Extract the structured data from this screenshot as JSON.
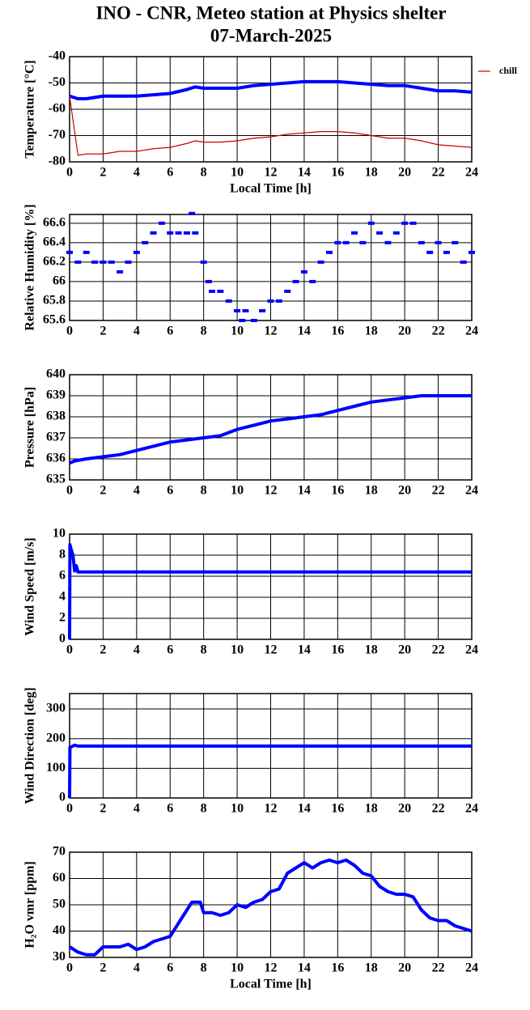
{
  "title": "INO - CNR, Meteo station at Physics shelter",
  "subtitle": "07-March-2025",
  "chart_data": [
    {
      "type": "line",
      "xlabel": "Local Time [h]",
      "ylabel": "Temperature [°C]",
      "grid": true,
      "legend": "right",
      "xlim": [
        0,
        24
      ],
      "ylim": [
        -80,
        -40
      ],
      "xticks": [
        0,
        2,
        4,
        6,
        8,
        10,
        12,
        14,
        16,
        18,
        20,
        22,
        24
      ],
      "yticks": [
        -40,
        -50,
        -60,
        -70,
        -80
      ],
      "x": [
        0,
        0.5,
        1,
        2,
        3,
        4,
        5,
        6,
        7,
        7.5,
        8,
        9,
        10,
        11,
        12,
        13,
        14,
        15,
        16,
        17,
        18,
        19,
        20,
        21,
        22,
        23,
        24
      ],
      "series": [
        {
          "color": "#0000ff",
          "values": [
            -55,
            -56,
            -56,
            -55,
            -55,
            -55,
            -54.5,
            -54,
            -52.5,
            -51.5,
            -52,
            -52,
            -52,
            -51,
            -50.5,
            -50,
            -49.5,
            -49.5,
            -49.5,
            -50,
            -50.5,
            -51,
            -51,
            -52,
            -53,
            -53,
            -53.5
          ]
        },
        {
          "name": "chill",
          "color": "#cc0000",
          "values": [
            -55,
            -77.5,
            -77,
            -77,
            -76,
            -76,
            -75,
            -74.5,
            -73,
            -72,
            -72.5,
            -72.5,
            -72,
            -71,
            -70.5,
            -69.5,
            -69,
            -68.5,
            -68.5,
            -69,
            -70,
            -71,
            -71,
            -72,
            -73.5,
            -74,
            -74.5
          ]
        }
      ]
    },
    {
      "type": "scatter",
      "ylabel": "Relative Humidity [%]",
      "grid": true,
      "xlim": [
        0,
        24
      ],
      "ylim": [
        65.6,
        66.69
      ],
      "xticks": [
        0,
        2,
        4,
        6,
        8,
        10,
        12,
        14,
        16,
        18,
        20,
        22,
        24
      ],
      "yticks": [
        66.6,
        66.4,
        66.2,
        66,
        65.8,
        65.6
      ],
      "x": [
        0,
        0.5,
        1,
        1.5,
        2,
        2.5,
        3,
        3.5,
        4,
        4.5,
        5,
        5.5,
        6,
        6.5,
        7,
        7.3,
        7.5,
        8,
        8.3,
        8.5,
        9,
        9.5,
        10,
        10.3,
        10.5,
        11,
        11.5,
        12,
        12.5,
        13,
        13.5,
        14,
        14.5,
        15,
        15.5,
        16,
        16.5,
        17,
        17.5,
        18,
        18.5,
        19,
        19.5,
        20,
        20.5,
        21,
        21.5,
        22,
        22.5,
        23,
        23.5,
        24
      ],
      "series": [
        {
          "color": "#0000ff",
          "values": [
            66.3,
            66.2,
            66.3,
            66.2,
            66.2,
            66.2,
            66.1,
            66.2,
            66.3,
            66.4,
            66.5,
            66.6,
            66.5,
            66.5,
            66.5,
            66.7,
            66.5,
            66.2,
            66.0,
            65.9,
            65.9,
            65.8,
            65.7,
            65.6,
            65.7,
            65.6,
            65.7,
            65.8,
            65.8,
            65.9,
            66.0,
            66.1,
            66.0,
            66.2,
            66.3,
            66.4,
            66.4,
            66.5,
            66.4,
            66.6,
            66.5,
            66.4,
            66.5,
            66.6,
            66.6,
            66.4,
            66.3,
            66.4,
            66.3,
            66.4,
            66.2,
            66.3
          ]
        }
      ]
    },
    {
      "type": "line",
      "ylabel": "Pressure [hPa]",
      "grid": true,
      "xlim": [
        0,
        24
      ],
      "ylim": [
        635,
        640
      ],
      "xticks": [
        0,
        2,
        4,
        6,
        8,
        10,
        12,
        14,
        16,
        18,
        20,
        22,
        24
      ],
      "yticks": [
        640,
        639,
        638,
        637,
        636,
        635
      ],
      "x": [
        0,
        0.3,
        1,
        2,
        3,
        4,
        5,
        6,
        7,
        8,
        9,
        10,
        11,
        12,
        13,
        14,
        15,
        16,
        17,
        18,
        19,
        20,
        21,
        22,
        23,
        24
      ],
      "series": [
        {
          "color": "#0000ff",
          "values": [
            635.8,
            635.9,
            636.0,
            636.1,
            636.2,
            636.4,
            636.6,
            636.8,
            636.9,
            637.0,
            637.1,
            637.4,
            637.6,
            637.8,
            637.9,
            638.0,
            638.1,
            638.3,
            638.5,
            638.7,
            638.8,
            638.9,
            639.0,
            639.0,
            639.0,
            639.0
          ]
        }
      ]
    },
    {
      "type": "line",
      "ylabel": "Wind Speed [m/s]",
      "grid": true,
      "xlim": [
        0,
        24
      ],
      "ylim": [
        0,
        10
      ],
      "xticks": [
        0,
        2,
        4,
        6,
        8,
        10,
        12,
        14,
        16,
        18,
        20,
        22,
        24
      ],
      "yticks": [
        10,
        8,
        6,
        4,
        2,
        0
      ],
      "x": [
        0,
        0.02,
        0.1,
        0.2,
        0.3,
        0.4,
        0.5,
        24
      ],
      "series": [
        {
          "color": "#0000ff",
          "values": [
            0,
            9,
            8.5,
            8,
            6.5,
            7,
            6.4,
            6.4
          ]
        }
      ]
    },
    {
      "type": "line",
      "ylabel": "Wind Direction [deg]",
      "grid": true,
      "xlim": [
        0,
        24
      ],
      "ylim": [
        0,
        352
      ],
      "xticks": [
        0,
        2,
        4,
        6,
        8,
        10,
        12,
        14,
        16,
        18,
        20,
        22,
        24
      ],
      "yticks": [
        300,
        200,
        100,
        0
      ],
      "x": [
        0,
        0.02,
        0.3,
        0.5,
        24
      ],
      "series": [
        {
          "color": "#0000ff",
          "values": [
            0,
            170,
            178,
            175,
            175
          ]
        }
      ]
    },
    {
      "type": "line",
      "xlabel": "Local Time [h]",
      "ylabel": "H₂O vmr [ppm]",
      "grid": true,
      "xlim": [
        0,
        24
      ],
      "ylim": [
        30,
        70
      ],
      "xticks": [
        0,
        2,
        4,
        6,
        8,
        10,
        12,
        14,
        16,
        18,
        20,
        22,
        24
      ],
      "yticks": [
        70,
        60,
        50,
        40,
        30
      ],
      "x": [
        0,
        0.5,
        1,
        1.5,
        2,
        2.5,
        3,
        3.5,
        4,
        4.5,
        5,
        5.5,
        6,
        6.5,
        7,
        7.3,
        7.8,
        8,
        8.5,
        9,
        9.5,
        10,
        10.5,
        11,
        11.5,
        12,
        12.5,
        13,
        13.5,
        14,
        14.5,
        15,
        15.5,
        16,
        16.5,
        17,
        17.5,
        18,
        18.5,
        19,
        19.5,
        20,
        20.5,
        21,
        21.5,
        22,
        22.5,
        23,
        23.5,
        24
      ],
      "series": [
        {
          "color": "#0000ff",
          "values": [
            34,
            32,
            31,
            31,
            34,
            34,
            34,
            35,
            33,
            34,
            36,
            37,
            38,
            43,
            48,
            51,
            51,
            47,
            47,
            46,
            47,
            50,
            49,
            51,
            52,
            55,
            56,
            62,
            64,
            66,
            64,
            66,
            67,
            66,
            67,
            65,
            62,
            61,
            57,
            55,
            54,
            54,
            53,
            48,
            45,
            44,
            44,
            42,
            41,
            40
          ]
        }
      ]
    }
  ]
}
